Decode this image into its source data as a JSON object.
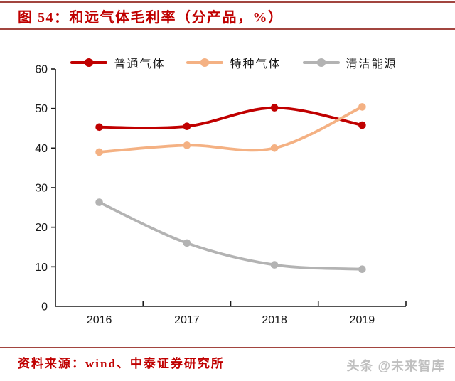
{
  "header": {
    "title": "图 54：和远气体毛利率（分产品，%）"
  },
  "footer": {
    "source": "资料来源：wind、中泰证券研究所",
    "watermark": "头条 @未来智库"
  },
  "colors": {
    "title_red": "#c00000",
    "rule_red": "#a2453f",
    "axis": "#1a1a1a",
    "watermark_gray": "#bfbfbf",
    "series_ordinary_gas": "#c00000",
    "series_special_gas": "#f4b183",
    "series_clean_energy": "#b3b3b3"
  },
  "chart_data": {
    "type": "line",
    "title": "和远气体毛利率（分产品，%）",
    "categories": [
      "2016",
      "2017",
      "2018",
      "2019"
    ],
    "series": [
      {
        "name": "普通气体",
        "color": "#c00000",
        "values": [
          45.3,
          45.5,
          50.2,
          45.8
        ]
      },
      {
        "name": "特种气体",
        "color": "#f4b183",
        "values": [
          39.0,
          40.7,
          40.0,
          50.4
        ]
      },
      {
        "name": "清洁能源",
        "color": "#b3b3b3",
        "values": [
          26.3,
          16.0,
          10.5,
          9.4
        ]
      }
    ],
    "xlabel": "",
    "ylabel": "",
    "ylim": [
      0,
      60
    ],
    "yticks": [
      0,
      10,
      20,
      30,
      40,
      50,
      60
    ],
    "grid": false,
    "smooth": true,
    "legend_position": "top",
    "marker": "circle"
  }
}
